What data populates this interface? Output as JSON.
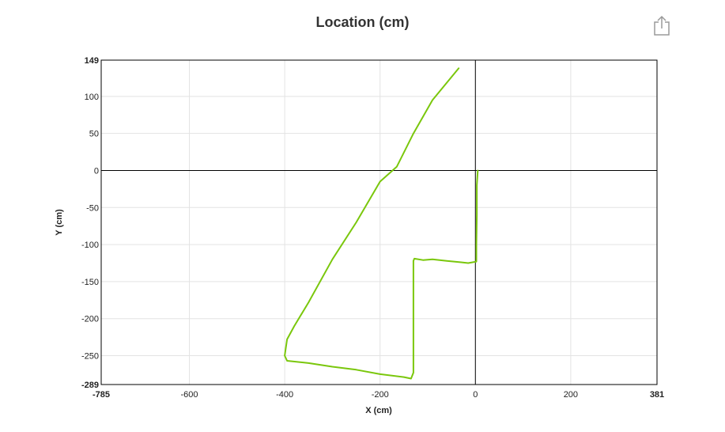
{
  "header": {
    "title": "Location (cm)",
    "share_icon": "share-icon"
  },
  "colors": {
    "series": "#7ac70c",
    "grid": "#e3e3e3",
    "axis": "#000000"
  },
  "chart_data": {
    "type": "line",
    "title": "Location (cm)",
    "xlabel": "X (cm)",
    "ylabel": "Y (cm)",
    "xlim": [
      -785,
      381
    ],
    "ylim": [
      -289,
      149
    ],
    "grid": true,
    "x_ticks": [
      {
        "value": -785,
        "label": "-785",
        "bold": true
      },
      {
        "value": -600,
        "label": "-600"
      },
      {
        "value": -400,
        "label": "-400"
      },
      {
        "value": -200,
        "label": "-200"
      },
      {
        "value": 0,
        "label": "0"
      },
      {
        "value": 200,
        "label": "200"
      },
      {
        "value": 381,
        "label": "381",
        "bold": true
      }
    ],
    "y_ticks": [
      {
        "value": 149,
        "label": "149",
        "bold": true
      },
      {
        "value": 100,
        "label": "100"
      },
      {
        "value": 50,
        "label": "50"
      },
      {
        "value": 0,
        "label": "0"
      },
      {
        "value": -50,
        "label": "-50"
      },
      {
        "value": -100,
        "label": "-100"
      },
      {
        "value": -150,
        "label": "-150"
      },
      {
        "value": -200,
        "label": "-200"
      },
      {
        "value": -250,
        "label": "-250"
      },
      {
        "value": -289,
        "label": "-289",
        "bold": true
      }
    ],
    "series": [
      {
        "color": "#7ac70c",
        "points": [
          [
            5,
            0
          ],
          [
            3,
            -20
          ],
          [
            3,
            -60
          ],
          [
            2,
            -100
          ],
          [
            2,
            -123
          ],
          [
            -15,
            -125
          ],
          [
            -30,
            -124
          ],
          [
            -45,
            -123
          ],
          [
            -60,
            -122
          ],
          [
            -90,
            -120
          ],
          [
            -110,
            -121
          ],
          [
            -128,
            -119
          ],
          [
            -130,
            -122
          ],
          [
            -130,
            -150
          ],
          [
            -130,
            -200
          ],
          [
            -130,
            -250
          ],
          [
            -130,
            -273
          ],
          [
            -135,
            -281
          ],
          [
            -150,
            -279
          ],
          [
            -200,
            -275
          ],
          [
            -250,
            -269
          ],
          [
            -300,
            -265
          ],
          [
            -350,
            -260
          ],
          [
            -395,
            -257
          ],
          [
            -400,
            -250
          ],
          [
            -395,
            -228
          ],
          [
            -380,
            -210
          ],
          [
            -350,
            -178
          ],
          [
            -300,
            -120
          ],
          [
            -250,
            -70
          ],
          [
            -200,
            -15
          ],
          [
            -165,
            5
          ],
          [
            -130,
            50
          ],
          [
            -90,
            95
          ],
          [
            -35,
            138
          ]
        ]
      }
    ]
  }
}
